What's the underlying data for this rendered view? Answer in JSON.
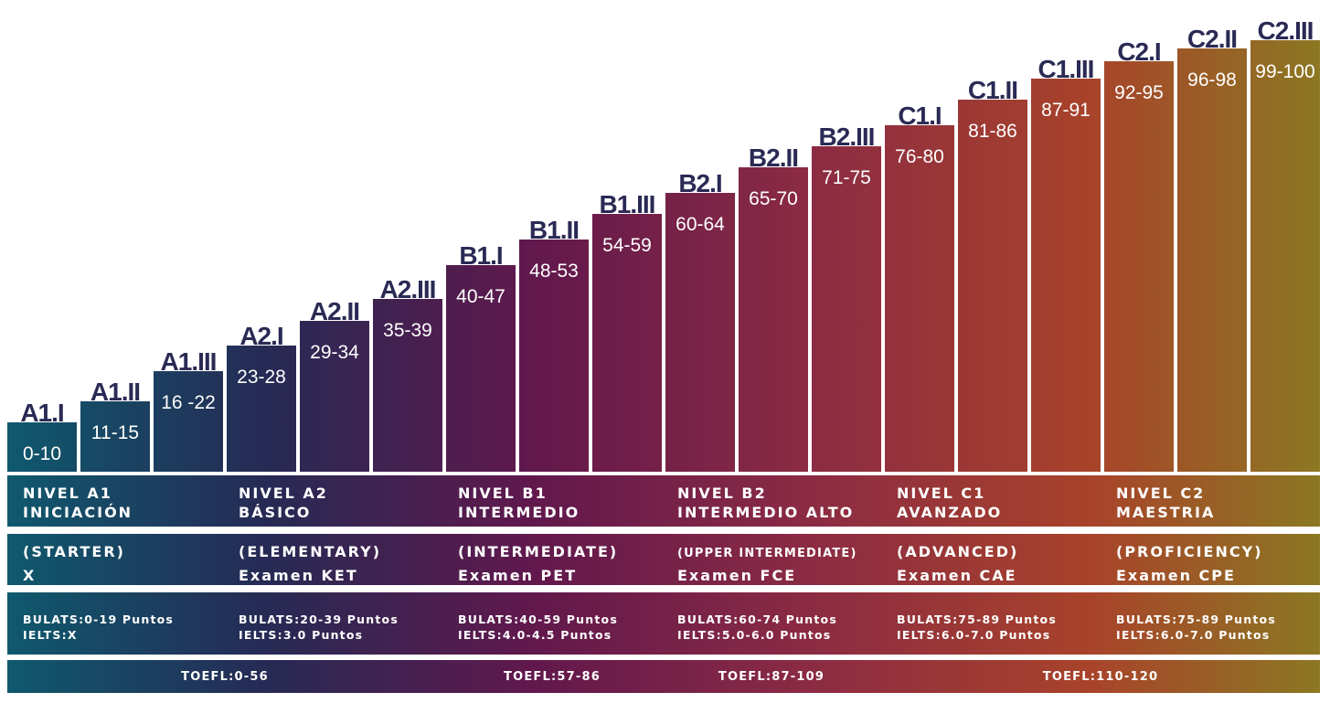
{
  "chart_data": {
    "type": "bar",
    "title": "",
    "xlabel": "",
    "ylabel": "",
    "ylim": [
      0,
      100
    ],
    "categories": [
      "A1.I",
      "A1.II",
      "A1.III",
      "A2.I",
      "A2.II",
      "A2.III",
      "B1.I",
      "B1.II",
      "B1.III",
      "B2.I",
      "B2.II",
      "B2.III",
      "C1.I",
      "C1.II",
      "C1.III",
      "C2.I",
      "C2.II",
      "C2.III"
    ],
    "ranges": [
      "0-10",
      "11-15",
      "16 -22",
      "23-28",
      "29-34",
      "35-39",
      "40-47",
      "48-53",
      "54-59",
      "60-64",
      "65-70",
      "71-75",
      "76-80",
      "81-86",
      "87-91",
      "92-95",
      "96-98",
      "99-100"
    ],
    "values": [
      10,
      15,
      22,
      28,
      34,
      39,
      47,
      53,
      59,
      64,
      70,
      75,
      80,
      86,
      91,
      95,
      98,
      100
    ]
  },
  "levels": [
    {
      "nivel": "NIVEL A1",
      "name": "INICIACIÓN",
      "english": "(STARTER)",
      "exam": "X",
      "bulats": "BULATS:0-19 Puntos",
      "ielts": "IELTS:X"
    },
    {
      "nivel": "NIVEL A2",
      "name": "BÁSICO",
      "english": "(ELEMENTARY)",
      "exam": "Examen KET",
      "bulats": "BULATS:20-39 Puntos",
      "ielts": "IELTS:3.0 Puntos"
    },
    {
      "nivel": "NIVEL B1",
      "name": "INTERMEDIO",
      "english": "(INTERMEDIATE)",
      "exam": "Examen PET",
      "bulats": "BULATS:40-59 Puntos",
      "ielts": "IELTS:4.0-4.5 Puntos"
    },
    {
      "nivel": "NIVEL B2",
      "name": "INTERMEDIO ALTO",
      "english": "(UPPER INTERMEDIATE)",
      "exam": "Examen FCE",
      "bulats": "BULATS:60-74 Puntos",
      "ielts": "IELTS:5.0-6.0 Puntos"
    },
    {
      "nivel": "NIVEL C1",
      "name": "AVANZADO",
      "english": "(ADVANCED)",
      "exam": "Examen CAE",
      "bulats": "BULATS:75-89 Puntos",
      "ielts": "IELTS:6.0-7.0 Puntos"
    },
    {
      "nivel": "NIVEL C2",
      "name": "MAESTRIA",
      "english": "(PROFICIENCY)",
      "exam": "Examen CPE",
      "bulats": "BULATS:75-89 Puntos",
      "ielts": "IELTS:6.0-7.0 Puntos"
    }
  ],
  "toefl": [
    {
      "label": "TOEFL:0-56",
      "levels": [
        "A1",
        "A2"
      ]
    },
    {
      "label": "TOEFL:57-86",
      "levels": [
        "B1"
      ]
    },
    {
      "label": "TOEFL:87-109",
      "levels": [
        "B2"
      ]
    },
    {
      "label": "TOEFL:110-120",
      "levels": [
        "C1",
        "C2"
      ]
    }
  ],
  "colors": {
    "start": "#0e5a6e",
    "mid1": "#262a54",
    "mid2": "#61184d",
    "mid3": "#8a2a44",
    "mid4": "#a8432a",
    "end": "#8a7a22",
    "text": "#ffffff",
    "background": "#ffffff"
  }
}
